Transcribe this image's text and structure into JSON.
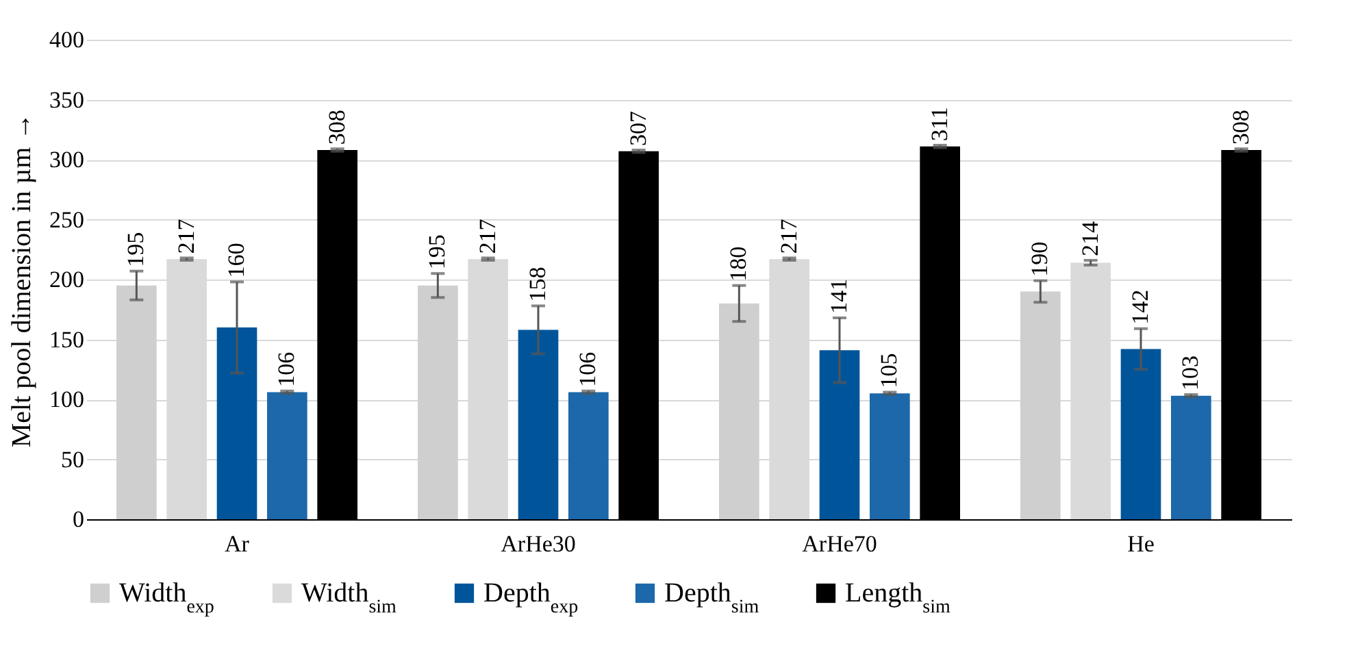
{
  "chart_data": {
    "type": "bar",
    "ylabel": "Melt pool dimension in µm →",
    "categories": [
      "Ar",
      "ArHe30",
      "ArHe70",
      "He"
    ],
    "series": [
      {
        "name": "Width$_{exp}$",
        "color": "#cfcfcf",
        "values": [
          195,
          195,
          180,
          190
        ],
        "errors": [
          12,
          10,
          15,
          9
        ]
      },
      {
        "name": "Width$_{sim}$",
        "color": "#dadada",
        "values": [
          217,
          217,
          217,
          214
        ],
        "errors": [
          1,
          1,
          1,
          2
        ]
      },
      {
        "name": "Depth$_{exp}$",
        "color": "#00559a",
        "values": [
          160,
          158,
          141,
          142
        ],
        "errors": [
          38,
          20,
          27,
          17
        ]
      },
      {
        "name": "Depth$_{sim}$",
        "color": "#1c68aa",
        "values": [
          106,
          106,
          105,
          103
        ],
        "errors": [
          1,
          1,
          1,
          1
        ]
      },
      {
        "name": "Length$_{sim}$",
        "color": "#000000",
        "values": [
          308,
          307,
          311,
          308
        ],
        "errors": [
          1,
          1,
          1,
          1
        ]
      }
    ],
    "ylim": [
      0,
      400
    ],
    "yticks": [
      0,
      50,
      100,
      150,
      200,
      250,
      300,
      350,
      400
    ],
    "grid": "y",
    "legend": "bottom",
    "data_labels": true
  }
}
